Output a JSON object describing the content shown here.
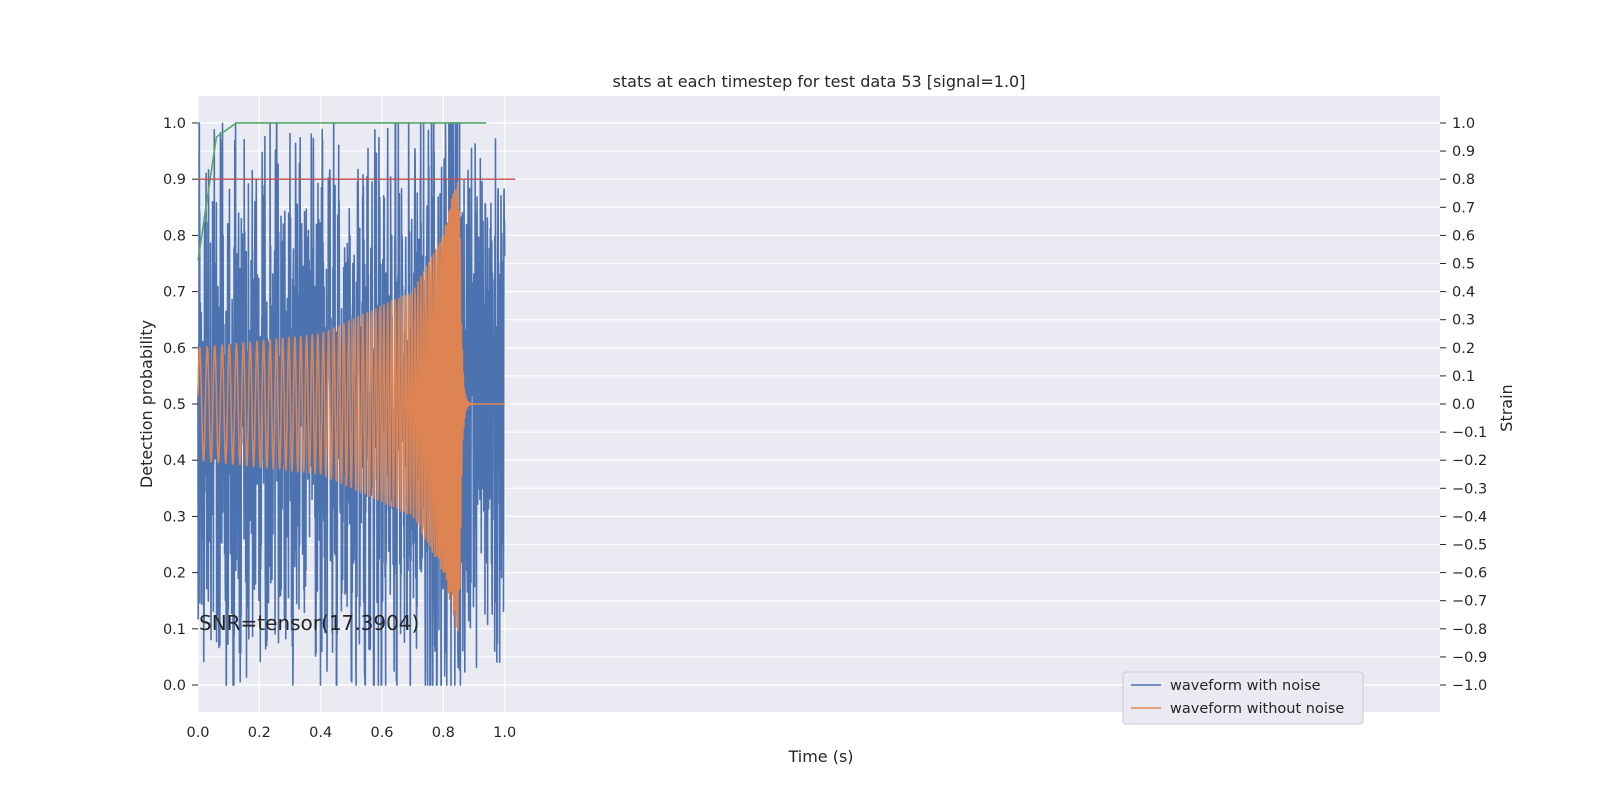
{
  "chart_data": {
    "type": "line",
    "title": "stats at each timestep for test data 53 [signal=1.0]",
    "xlabel": "Time (s)",
    "ylabel": "Detection probability",
    "ylabel_right": "Strain",
    "xlim": [
      0.0,
      4.05
    ],
    "ylim": [
      -0.048,
      1.048
    ],
    "ylim_right": [
      -1.096,
      1.096
    ],
    "x_ticks": [
      0.0,
      0.2,
      0.4,
      0.6,
      0.8,
      1.0
    ],
    "x_tick_labels": [
      "0.0",
      "0.2",
      "0.4",
      "0.6",
      "0.8",
      "1.0"
    ],
    "y_ticks": [
      0.0,
      0.1,
      0.2,
      0.3,
      0.4,
      0.5,
      0.6,
      0.7,
      0.8,
      0.9,
      1.0
    ],
    "y_tick_labels": [
      "0.0",
      "0.1",
      "0.2",
      "0.3",
      "0.4",
      "0.5",
      "0.6",
      "0.7",
      "0.8",
      "0.9",
      "1.0"
    ],
    "y2_ticks": [
      1.0,
      0.9,
      0.8,
      0.7,
      0.6,
      0.5,
      0.4,
      0.3,
      0.2,
      0.1,
      0.0,
      -0.1,
      -0.2,
      -0.3,
      -0.4,
      -0.5,
      -0.6,
      -0.7,
      -0.8,
      -0.9,
      -1.0
    ],
    "y2_tick_labels": [
      "1.0",
      "0.9",
      "0.8",
      "0.7",
      "0.6",
      "0.5",
      "0.4",
      "0.3",
      "0.2",
      "0.1",
      "0.0",
      "−0.1",
      "−0.2",
      "−0.3",
      "−0.4",
      "−0.5",
      "−0.6",
      "−0.7",
      "−0.8",
      "−0.9",
      "−1.0"
    ],
    "grid": true,
    "legend_position": "lower-right",
    "annotation": "SNR=tensor(17.3904)",
    "series": [
      {
        "name": "waveform with noise",
        "axis": "right",
        "color": "#4c72b0",
        "t_range": [
          0.0,
          1.0
        ],
        "amplitude_range": [
          -1.0,
          1.0
        ],
        "peak_time": 0.853
      },
      {
        "name": "waveform without noise",
        "axis": "right",
        "color": "#dd8452",
        "t_range": [
          0.0,
          1.0
        ],
        "amplitude_envelope": [
          [
            0.0,
            0.2
          ],
          [
            0.4,
            0.25
          ],
          [
            0.7,
            0.4
          ],
          [
            0.8,
            0.6
          ],
          [
            0.853,
            0.85
          ]
        ],
        "peak_time": 0.853
      },
      {
        "color": "#55a868",
        "axis": "left",
        "x": [
          0.0,
          0.06,
          0.125,
          0.94
        ],
        "y": [
          0.755,
          0.975,
          1.0,
          1.0
        ]
      },
      {
        "color": "#c44e52",
        "axis": "left",
        "x": [
          0.0,
          1.035
        ],
        "y": [
          0.9,
          0.9
        ]
      }
    ]
  }
}
